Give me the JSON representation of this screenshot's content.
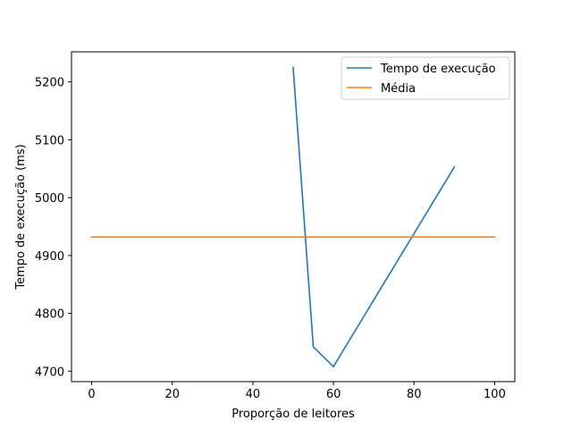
{
  "chart_data": {
    "type": "line",
    "title": "",
    "xlabel": "Proporção de leitores",
    "ylabel": "Tempo de execução (ms)",
    "xlim": [
      -5,
      105
    ],
    "ylim": [
      4682,
      5252
    ],
    "xticks": [
      0,
      20,
      40,
      60,
      80,
      100
    ],
    "yticks": [
      4700,
      4800,
      4900,
      5000,
      5100,
      5200
    ],
    "grid": false,
    "legend_position": "top-right",
    "series": [
      {
        "name": "Tempo de execução",
        "color": "#1f77b4",
        "x": [
          50,
          55,
          60,
          90
        ],
        "y": [
          5225,
          4742,
          4708,
          5053
        ]
      },
      {
        "name": "Média",
        "color": "#ff7f0e",
        "x": [
          0,
          100
        ],
        "y": [
          4932,
          4932
        ]
      }
    ]
  }
}
